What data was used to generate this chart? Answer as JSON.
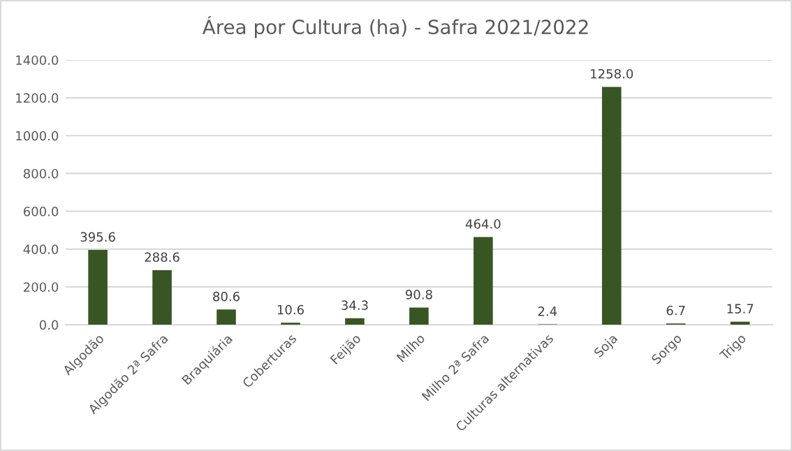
{
  "chart_data": {
    "type": "bar",
    "title": "Área por Cultura (ha) - Safra 2021/2022",
    "categories": [
      "Algodão",
      "Algodão 2ª Safra",
      "Braquiária",
      "Coberturas",
      "Feijão",
      "Milho",
      "Milho 2ª Safra",
      "Culturas alternativas",
      "Soja",
      "Sorgo",
      "Trigo"
    ],
    "values": [
      395.6,
      288.6,
      80.6,
      10.6,
      34.3,
      90.8,
      464.0,
      2.4,
      1258.0,
      6.7,
      15.7
    ],
    "value_labels": [
      "395.6",
      "288.6",
      "80.6",
      "10.6",
      "34.3",
      "90.8",
      "464.0",
      "2.4",
      "1258.0",
      "6.7",
      "15.7"
    ],
    "color": "#375623",
    "ylim": [
      0,
      1400
    ],
    "yticks": [
      {
        "value": 0,
        "label": "0.0"
      },
      {
        "value": 200,
        "label": "200.0"
      },
      {
        "value": 400,
        "label": "400.0"
      },
      {
        "value": 600,
        "label": "600.0"
      },
      {
        "value": 800,
        "label": "800.0"
      },
      {
        "value": 1000,
        "label": "1000.0"
      },
      {
        "value": 1200,
        "label": "1200.0"
      },
      {
        "value": 1400,
        "label": "1400.0"
      }
    ],
    "grid": "y",
    "legend": false
  }
}
